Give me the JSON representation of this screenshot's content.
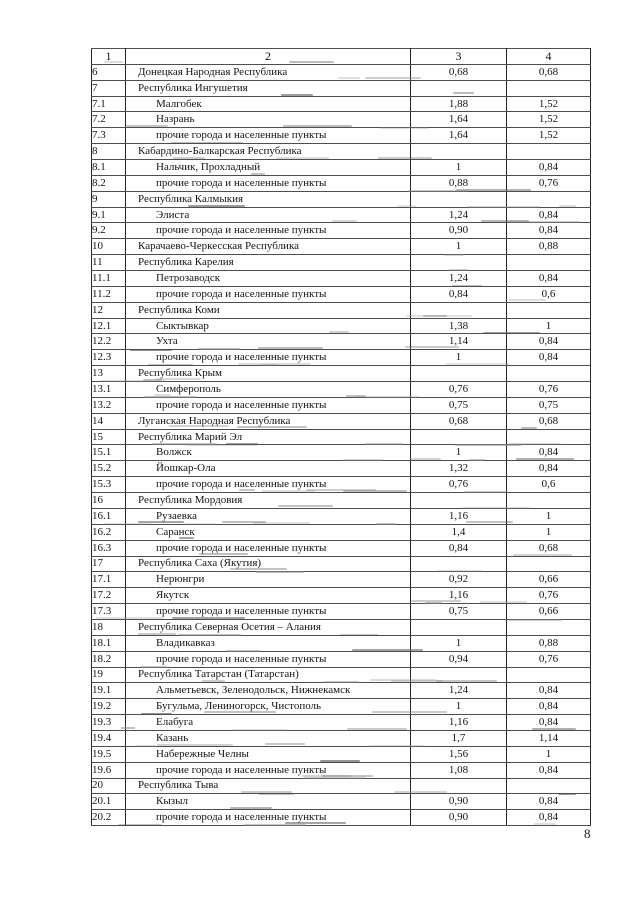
{
  "page": {
    "page_number": "8"
  },
  "table": {
    "headers": [
      "1",
      "2",
      "3",
      "4"
    ],
    "rows": [
      {
        "num": "6",
        "name": "Донецкая Народная Республика",
        "c3": "0,68",
        "c4": "0,68",
        "type": "region"
      },
      {
        "num": "7",
        "name": "Республика Ингушетия",
        "c3": "",
        "c4": "",
        "type": "region"
      },
      {
        "num": "7.1",
        "name": "Малгобек",
        "c3": "1,88",
        "c4": "1,52",
        "type": "city"
      },
      {
        "num": "7.2",
        "name": "Назрань",
        "c3": "1,64",
        "c4": "1,52",
        "type": "city"
      },
      {
        "num": "7.3",
        "name": "прочие города и населенные пункты",
        "c3": "1,64",
        "c4": "1,52",
        "type": "city"
      },
      {
        "num": "8",
        "name": "Кабардино-Балкарская Республика",
        "c3": "",
        "c4": "",
        "type": "region"
      },
      {
        "num": "8.1",
        "name": "Нальчик, Прохладный",
        "c3": "1",
        "c4": "0,84",
        "type": "city"
      },
      {
        "num": "8.2",
        "name": "прочие города и населенные пункты",
        "c3": "0,88",
        "c4": "0,76",
        "type": "city"
      },
      {
        "num": "9",
        "name": "Республика Калмыкия",
        "c3": "",
        "c4": "",
        "type": "region"
      },
      {
        "num": "9.1",
        "name": "Элиста",
        "c3": "1,24",
        "c4": "0,84",
        "type": "city"
      },
      {
        "num": "9.2",
        "name": "прочие города и населенные пункты",
        "c3": "0,90",
        "c4": "0,84",
        "type": "city"
      },
      {
        "num": "10",
        "name": "Карачаево-Черкесская Республика",
        "c3": "1",
        "c4": "0,88",
        "type": "region"
      },
      {
        "num": "11",
        "name": "Республика Карелия",
        "c3": "",
        "c4": "",
        "type": "region"
      },
      {
        "num": "11.1",
        "name": "Петрозаводск",
        "c3": "1,24",
        "c4": "0,84",
        "type": "city"
      },
      {
        "num": "11.2",
        "name": "прочие города и населенные пункты",
        "c3": "0,84",
        "c4": "0,6",
        "type": "city"
      },
      {
        "num": "12",
        "name": "Республика Коми",
        "c3": "",
        "c4": "",
        "type": "region"
      },
      {
        "num": "12.1",
        "name": "Сыктывкар",
        "c3": "1,38",
        "c4": "1",
        "type": "city"
      },
      {
        "num": "12.2",
        "name": "Ухта",
        "c3": "1,14",
        "c4": "0,84",
        "type": "city"
      },
      {
        "num": "12.3",
        "name": "прочие города и населенные пункты",
        "c3": "1",
        "c4": "0,84",
        "type": "city"
      },
      {
        "num": "13",
        "name": "Республика Крым",
        "c3": "",
        "c4": "",
        "type": "region"
      },
      {
        "num": "13.1",
        "name": "Симферополь",
        "c3": "0,76",
        "c4": "0,76",
        "type": "city"
      },
      {
        "num": "13.2",
        "name": "прочие города и населенные пункты",
        "c3": "0,75",
        "c4": "0,75",
        "type": "city"
      },
      {
        "num": "14",
        "name": "Луганская Народная Республика",
        "c3": "0,68",
        "c4": "0,68",
        "type": "region"
      },
      {
        "num": "15",
        "name": "Республика Марий Эл",
        "c3": "",
        "c4": "",
        "type": "region"
      },
      {
        "num": "15.1",
        "name": "Волжск",
        "c3": "1",
        "c4": "0,84",
        "type": "city"
      },
      {
        "num": "15.2",
        "name": "Йошкар-Ола",
        "c3": "1,32",
        "c4": "0,84",
        "type": "city"
      },
      {
        "num": "15.3",
        "name": "прочие города и населенные пункты",
        "c3": "0,76",
        "c4": "0,6",
        "type": "city"
      },
      {
        "num": "16",
        "name": "Республика Мордовия",
        "c3": "",
        "c4": "",
        "type": "region"
      },
      {
        "num": "16.1",
        "name": "Рузаевка",
        "c3": "1,16",
        "c4": "1",
        "type": "city"
      },
      {
        "num": "16.2",
        "name": "Саранск",
        "c3": "1,4",
        "c4": "1",
        "type": "city"
      },
      {
        "num": "16.3",
        "name": "прочие города и населенные пункты",
        "c3": "0,84",
        "c4": "0,68",
        "type": "city"
      },
      {
        "num": "17",
        "name": "Республика Саха (Якутия)",
        "c3": "",
        "c4": "",
        "type": "region"
      },
      {
        "num": "17.1",
        "name": "Нерюнгри",
        "c3": "0,92",
        "c4": "0,66",
        "type": "city"
      },
      {
        "num": "17.2",
        "name": "Якутск",
        "c3": "1,16",
        "c4": "0,76",
        "type": "city"
      },
      {
        "num": "17.3",
        "name": "прочие города и населенные пункты",
        "c3": "0,75",
        "c4": "0,66",
        "type": "city"
      },
      {
        "num": "18",
        "name": "Республика Северная Осетия – Алания",
        "c3": "",
        "c4": "",
        "type": "region"
      },
      {
        "num": "18.1",
        "name": "Владикавказ",
        "c3": "1",
        "c4": "0,88",
        "type": "city"
      },
      {
        "num": "18.2",
        "name": "прочие города и населенные пункты",
        "c3": "0,94",
        "c4": "0,76",
        "type": "city"
      },
      {
        "num": "19",
        "name": "Республика Татарстан (Татарстан)",
        "c3": "",
        "c4": "",
        "type": "region"
      },
      {
        "num": "19.1",
        "name": "Альметьевск, Зеленодольск, Нижнекамск",
        "c3": "1,24",
        "c4": "0,84",
        "type": "city"
      },
      {
        "num": "19.2",
        "name": "Бугульма, Лениногорск, Чистополь",
        "c3": "1",
        "c4": "0,84",
        "type": "city"
      },
      {
        "num": "19.3",
        "name": "Елабуга",
        "c3": "1,16",
        "c4": "0,84",
        "type": "city"
      },
      {
        "num": "19.4",
        "name": "Казань",
        "c3": "1,7",
        "c4": "1,14",
        "type": "city"
      },
      {
        "num": "19.5",
        "name": "Набережные Челны",
        "c3": "1,56",
        "c4": "1",
        "type": "city"
      },
      {
        "num": "19.6",
        "name": "прочие города и населенные пункты",
        "c3": "1,08",
        "c4": "0,84",
        "type": "city"
      },
      {
        "num": "20",
        "name": "Республика Тыва",
        "c3": "",
        "c4": "",
        "type": "region"
      },
      {
        "num": "20.1",
        "name": "Кызыл",
        "c3": "0,90",
        "c4": "0,84",
        "type": "city"
      },
      {
        "num": "20.2",
        "name": "прочие города и населенные пункты",
        "c3": "0,90",
        "c4": "0,84",
        "type": "city"
      }
    ]
  }
}
